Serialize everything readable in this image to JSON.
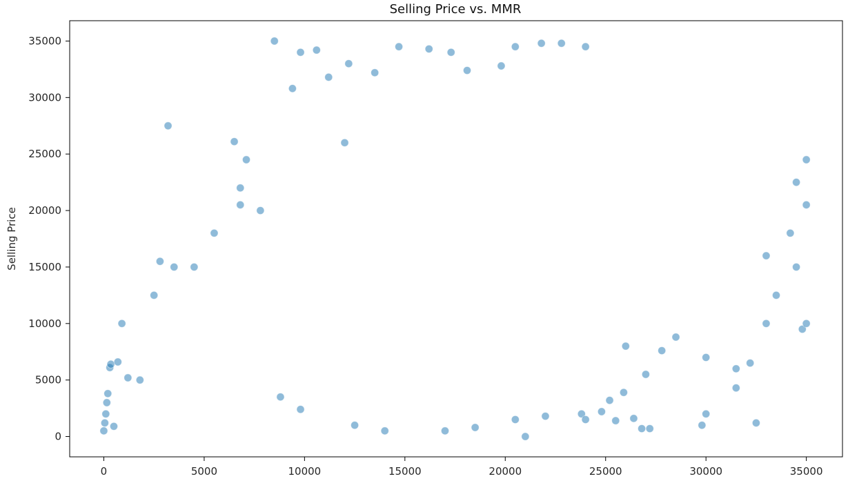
{
  "chart_data": {
    "type": "scatter",
    "title": "Selling Price vs. MMR",
    "xlabel": "",
    "ylabel": "Selling Price",
    "xlim": [
      -1700,
      36800
    ],
    "ylim": [
      -1800,
      36800
    ],
    "xticks": [
      0,
      5000,
      10000,
      15000,
      20000,
      25000,
      30000,
      35000
    ],
    "yticks": [
      0,
      5000,
      10000,
      15000,
      20000,
      25000,
      30000,
      35000
    ],
    "grid": false,
    "legend": "none",
    "colors": {
      "point_fill": "#1f77b4",
      "point_edge": "#ffffff",
      "axis": "#000000"
    },
    "series": [
      {
        "points": [
          [
            0,
            500
          ],
          [
            50,
            1200
          ],
          [
            100,
            2000
          ],
          [
            150,
            3000
          ],
          [
            200,
            3800
          ],
          [
            300,
            6100
          ],
          [
            350,
            6400
          ],
          [
            500,
            900
          ],
          [
            700,
            6600
          ],
          [
            900,
            10000
          ],
          [
            1200,
            5200
          ],
          [
            1800,
            5000
          ],
          [
            3200,
            27500
          ],
          [
            2800,
            15500
          ],
          [
            2500,
            12500
          ],
          [
            3500,
            15000
          ],
          [
            4500,
            15000
          ],
          [
            5500,
            18000
          ],
          [
            6500,
            26100
          ],
          [
            6800,
            22000
          ],
          [
            7100,
            24500
          ],
          [
            6800,
            20500
          ],
          [
            7800,
            20000
          ],
          [
            8500,
            35000
          ],
          [
            9400,
            30800
          ],
          [
            9800,
            34000
          ],
          [
            10600,
            34200
          ],
          [
            11200,
            31800
          ],
          [
            12200,
            33000
          ],
          [
            12000,
            26000
          ],
          [
            13500,
            32200
          ],
          [
            14700,
            34500
          ],
          [
            16200,
            34300
          ],
          [
            17300,
            34000
          ],
          [
            18100,
            32400
          ],
          [
            19800,
            32800
          ],
          [
            20500,
            34500
          ],
          [
            21800,
            34800
          ],
          [
            22800,
            34800
          ],
          [
            24000,
            34500
          ],
          [
            8800,
            3500
          ],
          [
            9800,
            2400
          ],
          [
            12500,
            1000
          ],
          [
            14000,
            500
          ],
          [
            17000,
            500
          ],
          [
            18500,
            800
          ],
          [
            20500,
            1500
          ],
          [
            21000,
            0
          ],
          [
            22000,
            1800
          ],
          [
            23800,
            2000
          ],
          [
            24000,
            1500
          ],
          [
            24800,
            2200
          ],
          [
            25200,
            3200
          ],
          [
            25500,
            1400
          ],
          [
            25900,
            3900
          ],
          [
            26400,
            1600
          ],
          [
            26800,
            700
          ],
          [
            27200,
            700
          ],
          [
            29800,
            1000
          ],
          [
            30000,
            2000
          ],
          [
            32500,
            1200
          ],
          [
            32200,
            6500
          ],
          [
            31500,
            4300
          ],
          [
            31500,
            6000
          ],
          [
            33000,
            10000
          ],
          [
            34800,
            9500
          ],
          [
            35000,
            10000
          ],
          [
            34500,
            15000
          ],
          [
            35000,
            20500
          ],
          [
            33500,
            12500
          ],
          [
            34200,
            18000
          ],
          [
            33000,
            16000
          ],
          [
            34500,
            22500
          ],
          [
            35000,
            24500
          ],
          [
            30000,
            7000
          ],
          [
            28500,
            8800
          ],
          [
            27800,
            7600
          ],
          [
            27000,
            5500
          ],
          [
            26000,
            8000
          ]
        ]
      }
    ]
  }
}
